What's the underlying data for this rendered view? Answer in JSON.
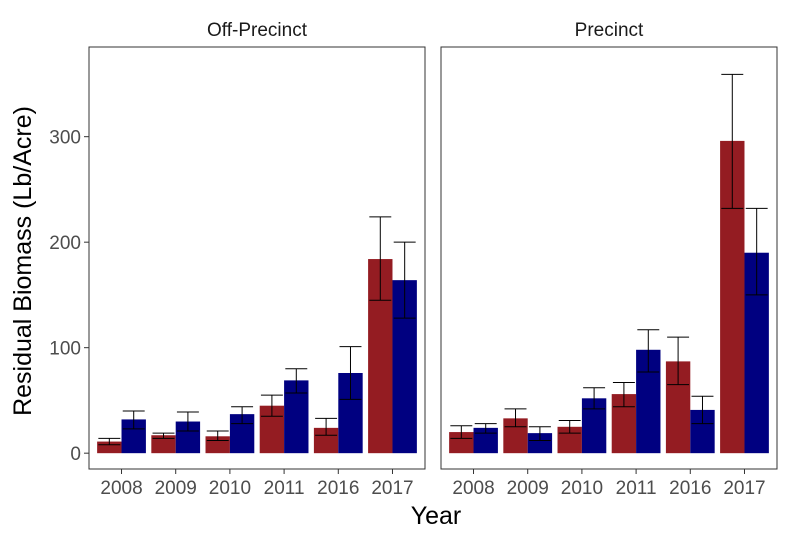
{
  "chart_data": {
    "type": "bar",
    "xlabel": "Year",
    "ylabel": "Residual Biomass (Lb/Acre)",
    "ylim": [
      -15,
      385
    ],
    "yticks": [
      0,
      100,
      200,
      300
    ],
    "categories": [
      "2008",
      "2009",
      "2010",
      "2011",
      "2016",
      "2017"
    ],
    "series_colors": [
      "#941c22",
      "#000080"
    ],
    "grid": false,
    "legend": "none",
    "panels": [
      {
        "title": "Off-Precinct",
        "series": [
          {
            "color": "#941c22",
            "values": [
              11,
              17,
              16,
              45,
              24,
              184
            ],
            "error_low": [
              8,
              14,
              12,
              35,
              17,
              145
            ],
            "error_high": [
              14,
              19,
              21,
              55,
              33,
              224
            ]
          },
          {
            "color": "#000080",
            "values": [
              32,
              30,
              37,
              69,
              76,
              164
            ],
            "error_low": [
              23,
              21,
              28,
              57,
              51,
              128
            ],
            "error_high": [
              40,
              39,
              44,
              80,
              101,
              200
            ]
          }
        ]
      },
      {
        "title": "Precinct",
        "series": [
          {
            "color": "#941c22",
            "values": [
              20,
              33,
              25,
              56,
              87,
              296
            ],
            "error_low": [
              14,
              25,
              19,
              44,
              65,
              232
            ],
            "error_high": [
              26,
              42,
              31,
              67,
              110,
              359
            ]
          },
          {
            "color": "#000080",
            "values": [
              24,
              19,
              52,
              98,
              41,
              190
            ],
            "error_low": [
              19,
              12,
              42,
              77,
              28,
              150
            ],
            "error_high": [
              28,
              25,
              62,
              117,
              54,
              232
            ]
          }
        ]
      }
    ]
  }
}
